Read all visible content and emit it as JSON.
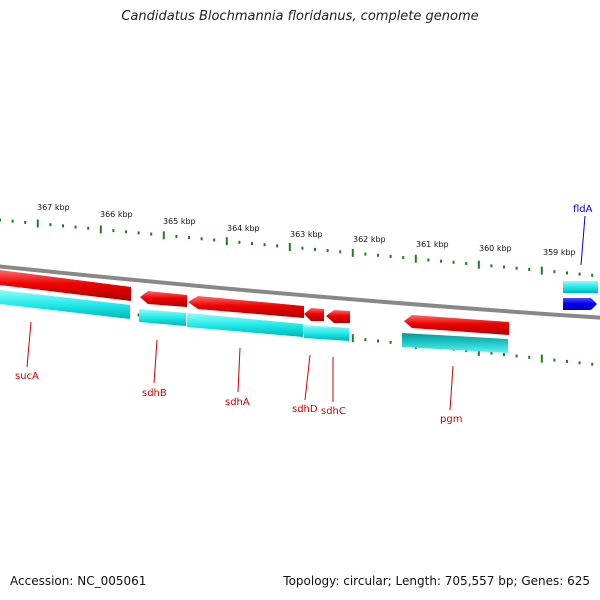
{
  "title": "Candidatus Blochmannia floridanus, complete genome",
  "footer": {
    "accession": "Accession: NC_005061",
    "summary": "Topology: circular; Length: 705,557 bp; Genes: 625"
  },
  "axis": {
    "labels": [
      "367 kbp",
      "366 kbp",
      "365 kbp",
      "364 kbp",
      "363 kbp",
      "362 kbp",
      "361 kbp",
      "360 kbp",
      "359 kbp"
    ]
  },
  "genes": [
    {
      "name": "sucA",
      "color": "#cc0000"
    },
    {
      "name": "sdhB",
      "color": "#cc0000"
    },
    {
      "name": "sdhA",
      "color": "#cc0000"
    },
    {
      "name": "sdhD",
      "color": "#cc0000"
    },
    {
      "name": "sdhC",
      "color": "#cc0000"
    },
    {
      "name": "pgm",
      "color": "#cc0000"
    },
    {
      "name": "fldA",
      "color": "#0000cc"
    }
  ],
  "colors": {
    "gene_red": "#ee0000",
    "gene_cyan": "#00eeee",
    "gene_blue": "#0000ee",
    "backbone": "#888888",
    "tick": "#1e7d1e"
  }
}
